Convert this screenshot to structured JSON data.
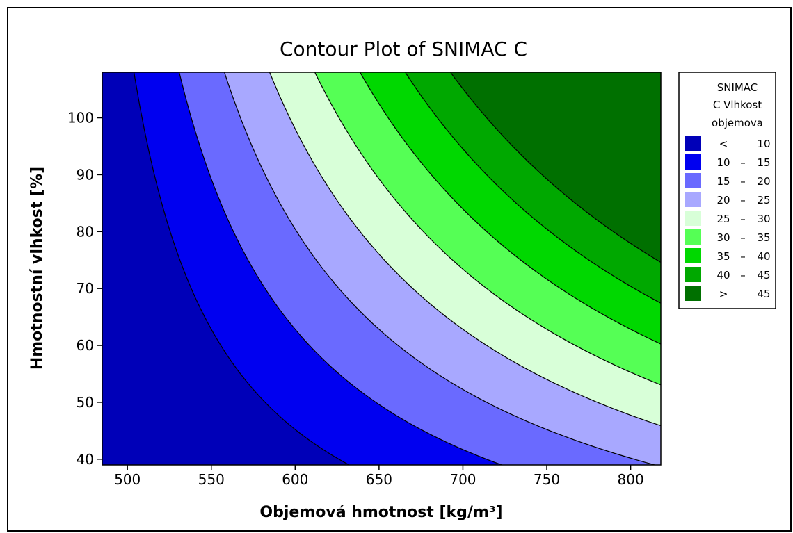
{
  "chart_data": {
    "type": "contour",
    "title": "Contour Plot of SNIMAC C",
    "xlabel": "Objemová hmotnost [kg/m³]",
    "ylabel": "Hmotnostní vlhkost [%]",
    "xlim": [
      485,
      818
    ],
    "ylim": [
      39,
      108
    ],
    "xticks": [
      "500",
      "550",
      "600",
      "650",
      "700",
      "750",
      "800"
    ],
    "yticks": [
      "40",
      "50",
      "60",
      "70",
      "80",
      "90",
      "100"
    ],
    "legend": {
      "title": [
        "SNIMAC",
        "C Vlhkost",
        "objemova"
      ],
      "entries": [
        {
          "lo": "<",
          "hi": "10",
          "color": "#0000b8"
        },
        {
          "lo": "10",
          "hi": "15",
          "color": "#0000f0"
        },
        {
          "lo": "15",
          "hi": "20",
          "color": "#6a6aff"
        },
        {
          "lo": "20",
          "hi": "25",
          "color": "#a8a8ff"
        },
        {
          "lo": "25",
          "hi": "30",
          "color": "#d8ffd8"
        },
        {
          "lo": "30",
          "hi": "35",
          "color": "#55ff55"
        },
        {
          "lo": "35",
          "hi": "40",
          "color": "#00d800"
        },
        {
          "lo": "40",
          "hi": "45",
          "color": "#00a800"
        },
        {
          "lo": ">",
          "hi": "45",
          "color": "#007000"
        }
      ]
    },
    "levels": [
      10,
      15,
      20,
      25,
      30,
      35,
      40,
      45
    ]
  }
}
